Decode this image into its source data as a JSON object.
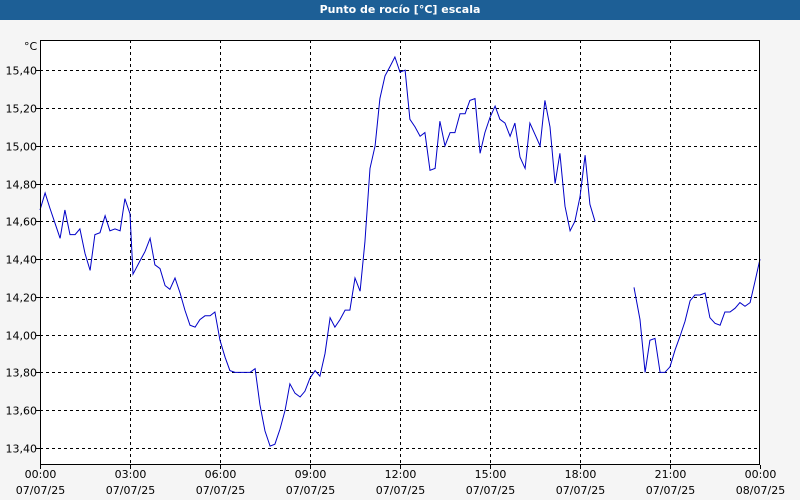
{
  "window": {
    "title": "Punto de rocío [°C] escala"
  },
  "colors": {
    "line": "#0000c8",
    "titlebar": "#1d5f96",
    "grid": "#000000",
    "plot_bg": "#ffffff"
  },
  "chart_data": {
    "type": "line",
    "title": "Punto de rocío [°C] escala",
    "ylabel": "°C",
    "xlabel": "",
    "grid": true,
    "ylim": [
      13.31,
      15.56
    ],
    "xlim": [
      0,
      24
    ],
    "y_ticks": [
      "13,40",
      "13,60",
      "13,80",
      "14,00",
      "14,20",
      "14,40",
      "14,60",
      "14,80",
      "15,00",
      "15,20",
      "15,40"
    ],
    "y_tick_values": [
      13.4,
      13.6,
      13.8,
      14.0,
      14.2,
      14.4,
      14.6,
      14.8,
      15.0,
      15.2,
      15.4
    ],
    "x_ticks": [
      {
        "time": "00:00",
        "date": "07/07/25",
        "hour": 0
      },
      {
        "time": "03:00",
        "date": "07/07/25",
        "hour": 3
      },
      {
        "time": "06:00",
        "date": "07/07/25",
        "hour": 6
      },
      {
        "time": "09:00",
        "date": "07/07/25",
        "hour": 9
      },
      {
        "time": "12:00",
        "date": "07/07/25",
        "hour": 12
      },
      {
        "time": "15:00",
        "date": "07/07/25",
        "hour": 15
      },
      {
        "time": "18:00",
        "date": "07/07/25",
        "hour": 18
      },
      {
        "time": "21:00",
        "date": "07/07/25",
        "hour": 21
      },
      {
        "time": "00:00",
        "date": "08/07/25",
        "hour": 24
      }
    ],
    "series": [
      {
        "segments": [
          [
            [
              0,
              14.66
            ],
            [
              0.17,
              14.75
            ],
            [
              0.33,
              14.67
            ],
            [
              0.5,
              14.59
            ],
            [
              0.67,
              14.51
            ],
            [
              0.83,
              14.66
            ],
            [
              1.0,
              14.53
            ],
            [
              1.17,
              14.53
            ],
            [
              1.33,
              14.56
            ],
            [
              1.5,
              14.43
            ],
            [
              1.67,
              14.34
            ],
            [
              1.83,
              14.53
            ],
            [
              2.0,
              14.54
            ],
            [
              2.17,
              14.63
            ],
            [
              2.33,
              14.55
            ],
            [
              2.5,
              14.56
            ],
            [
              2.67,
              14.55
            ],
            [
              2.83,
              14.72
            ],
            [
              3.0,
              14.64
            ],
            [
              3.1,
              14.32
            ],
            [
              3.33,
              14.39
            ],
            [
              3.5,
              14.44
            ],
            [
              3.67,
              14.51
            ],
            [
              3.83,
              14.37
            ],
            [
              4.0,
              14.35
            ],
            [
              4.17,
              14.26
            ],
            [
              4.33,
              14.24
            ],
            [
              4.5,
              14.3
            ],
            [
              4.67,
              14.22
            ],
            [
              4.83,
              14.13
            ],
            [
              5.0,
              14.05
            ],
            [
              5.17,
              14.04
            ],
            [
              5.33,
              14.08
            ],
            [
              5.5,
              14.1
            ],
            [
              5.67,
              14.1
            ],
            [
              5.83,
              14.12
            ],
            [
              6.0,
              13.97
            ],
            [
              6.17,
              13.88
            ],
            [
              6.33,
              13.81
            ],
            [
              6.5,
              13.8
            ],
            [
              6.67,
              13.8
            ],
            [
              6.83,
              13.8
            ],
            [
              7.0,
              13.8
            ],
            [
              7.17,
              13.82
            ],
            [
              7.33,
              13.63
            ],
            [
              7.5,
              13.49
            ],
            [
              7.67,
              13.41
            ],
            [
              7.83,
              13.42
            ],
            [
              8.0,
              13.5
            ],
            [
              8.17,
              13.6
            ],
            [
              8.33,
              13.74
            ],
            [
              8.5,
              13.69
            ],
            [
              8.67,
              13.67
            ],
            [
              8.83,
              13.7
            ],
            [
              9.0,
              13.77
            ],
            [
              9.17,
              13.81
            ],
            [
              9.33,
              13.78
            ],
            [
              9.5,
              13.9
            ],
            [
              9.67,
              14.09
            ],
            [
              9.83,
              14.04
            ],
            [
              10.0,
              14.08
            ],
            [
              10.17,
              14.13
            ],
            [
              10.33,
              14.13
            ],
            [
              10.5,
              14.3
            ],
            [
              10.67,
              14.23
            ],
            [
              10.83,
              14.49
            ],
            [
              11.0,
              14.88
            ],
            [
              11.17,
              15.0
            ],
            [
              11.33,
              15.25
            ],
            [
              11.5,
              15.37
            ],
            [
              11.67,
              15.42
            ],
            [
              11.83,
              15.47
            ],
            [
              12.0,
              15.39
            ],
            [
              12.17,
              15.4
            ],
            [
              12.33,
              15.14
            ],
            [
              12.5,
              15.1
            ],
            [
              12.67,
              15.05
            ],
            [
              12.83,
              15.07
            ],
            [
              13.0,
              14.87
            ],
            [
              13.17,
              14.88
            ],
            [
              13.33,
              15.13
            ],
            [
              13.5,
              15.0
            ],
            [
              13.67,
              15.07
            ],
            [
              13.83,
              15.07
            ],
            [
              14.0,
              15.17
            ],
            [
              14.17,
              15.17
            ],
            [
              14.33,
              15.24
            ],
            [
              14.5,
              15.25
            ],
            [
              14.67,
              14.96
            ],
            [
              14.83,
              15.07
            ],
            [
              15.0,
              15.15
            ],
            [
              15.17,
              15.21
            ],
            [
              15.33,
              15.14
            ],
            [
              15.5,
              15.12
            ],
            [
              15.67,
              15.05
            ],
            [
              15.83,
              15.12
            ],
            [
              16.0,
              14.94
            ],
            [
              16.17,
              14.88
            ],
            [
              16.33,
              15.12
            ],
            [
              16.5,
              15.06
            ],
            [
              16.67,
              15.0
            ],
            [
              16.83,
              15.24
            ],
            [
              17.0,
              15.1
            ],
            [
              17.17,
              14.8
            ],
            [
              17.33,
              14.96
            ],
            [
              17.5,
              14.68
            ],
            [
              17.67,
              14.55
            ],
            [
              17.83,
              14.6
            ],
            [
              18.0,
              14.73
            ],
            [
              18.17,
              14.95
            ],
            [
              18.33,
              14.69
            ],
            [
              18.5,
              14.6
            ]
          ],
          [
            [
              19.8,
              14.25
            ],
            [
              20.0,
              14.08
            ],
            [
              20.17,
              13.8
            ],
            [
              20.33,
              13.97
            ],
            [
              20.5,
              13.98
            ],
            [
              20.67,
              13.8
            ],
            [
              20.83,
              13.8
            ],
            [
              21.0,
              13.83
            ],
            [
              21.17,
              13.92
            ],
            [
              21.33,
              13.99
            ],
            [
              21.5,
              14.07
            ],
            [
              21.67,
              14.18
            ],
            [
              21.83,
              14.21
            ],
            [
              22.0,
              14.21
            ],
            [
              22.17,
              14.22
            ],
            [
              22.33,
              14.09
            ],
            [
              22.5,
              14.06
            ],
            [
              22.67,
              14.05
            ],
            [
              22.83,
              14.12
            ],
            [
              23.0,
              14.12
            ],
            [
              23.17,
              14.14
            ],
            [
              23.33,
              14.17
            ],
            [
              23.5,
              14.15
            ],
            [
              23.67,
              14.17
            ],
            [
              23.83,
              14.28
            ],
            [
              24.0,
              14.4
            ]
          ]
        ]
      }
    ]
  }
}
